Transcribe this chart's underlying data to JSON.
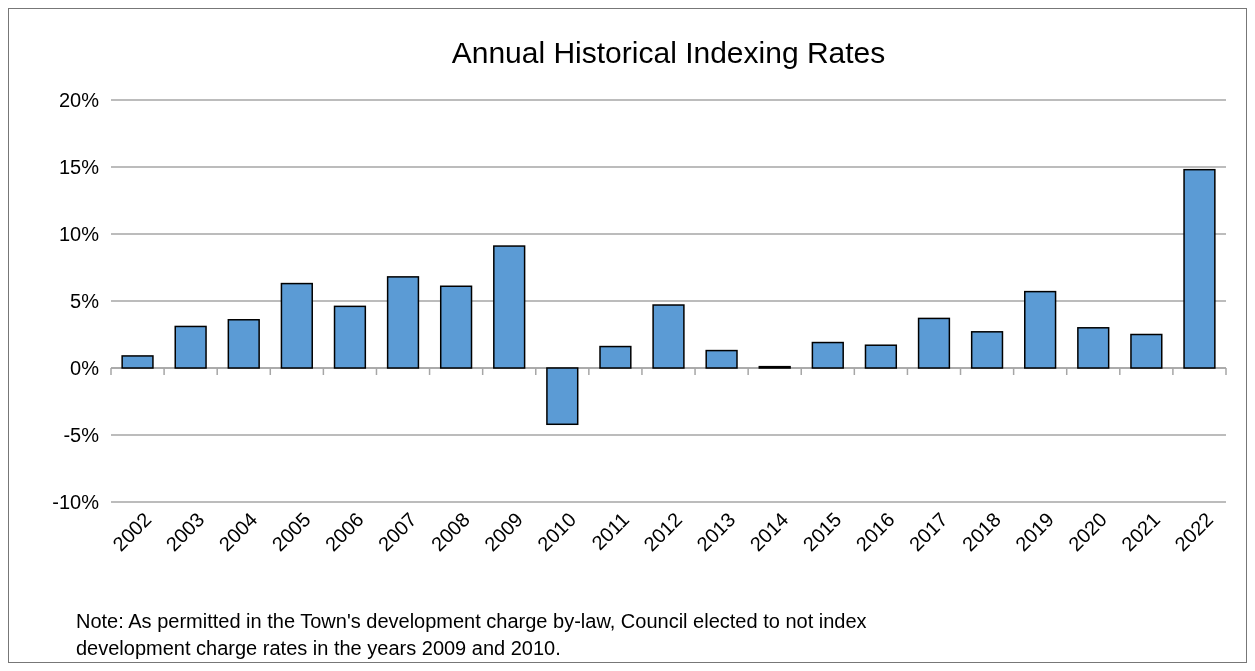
{
  "chart_data": {
    "type": "bar",
    "title": "Annual Historical Indexing Rates",
    "categories": [
      "2002",
      "2003",
      "2004",
      "2005",
      "2006",
      "2007",
      "2008",
      "2009",
      "2010",
      "2011",
      "2012",
      "2013",
      "2014",
      "2015",
      "2016",
      "2017",
      "2018",
      "2019",
      "2020",
      "2021",
      "2022"
    ],
    "values": [
      0.9,
      3.1,
      3.6,
      6.3,
      4.6,
      6.8,
      6.1,
      9.1,
      -4.2,
      1.6,
      4.7,
      1.3,
      0.1,
      1.9,
      1.7,
      3.7,
      2.7,
      5.7,
      3.0,
      2.5,
      14.8
    ],
    "color": "#5b9bd5",
    "ylim": [
      -10,
      20
    ],
    "yticks": [
      {
        "value": -10,
        "label": "-10%"
      },
      {
        "value": -5,
        "label": "-5%"
      },
      {
        "value": 0,
        "label": "0%"
      },
      {
        "value": 5,
        "label": "5%"
      },
      {
        "value": 10,
        "label": "10%"
      },
      {
        "value": 15,
        "label": "15%"
      },
      {
        "value": 20,
        "label": "20%"
      }
    ],
    "grid": "y",
    "annotations": [
      "Note: As permitted in the Town's development charge by-law, Council elected to not index development charge rates in the years 2009 and 2010."
    ]
  }
}
